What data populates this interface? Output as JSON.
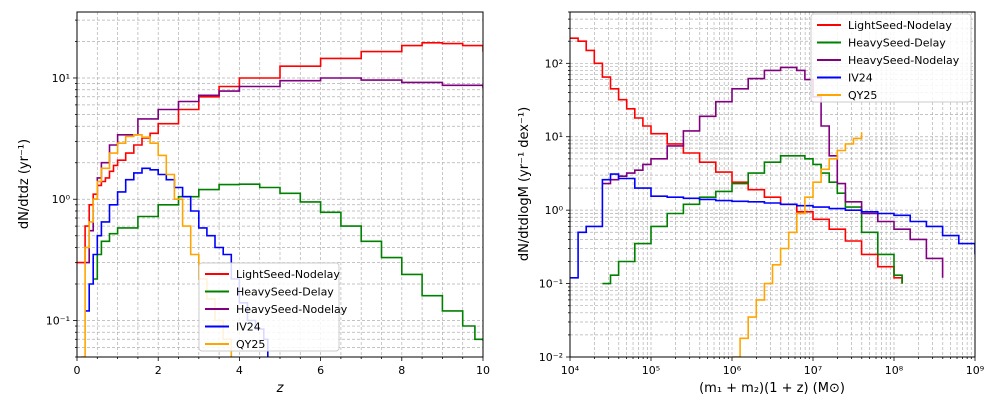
{
  "chart_data": [
    {
      "type": "line",
      "step": true,
      "title": "",
      "xlabel": "z",
      "ylabel": "dN/dtdz (yr⁻¹)",
      "xscale": "linear",
      "yscale": "log",
      "xlim": [
        0,
        10
      ],
      "ylim": [
        0.05,
        35
      ],
      "xticks": [
        0,
        2,
        4,
        6,
        8,
        10
      ],
      "xtick_labels": [
        "0",
        "2",
        "4",
        "6",
        "8",
        "10"
      ],
      "yticks": [
        0.1,
        1,
        10
      ],
      "ytick_labels": [
        "10⁻¹",
        "10⁰",
        "10¹"
      ],
      "grid": true,
      "legend_position": "lower-center",
      "series": [
        {
          "name": "LightSeed-Nodelay",
          "color": "#ff0000",
          "x": [
            0,
            0.2,
            0.3,
            0.4,
            0.5,
            0.6,
            0.7,
            0.8,
            0.9,
            1.0,
            1.2,
            1.4,
            1.6,
            1.8,
            2.0,
            2.5,
            3.0,
            3.5,
            4.0,
            5.0,
            6.0,
            7.0,
            8.0,
            8.5,
            9.0,
            9.5,
            10.0
          ],
          "y": [
            0.3,
            0.6,
            0.9,
            1.1,
            1.3,
            1.4,
            1.5,
            1.7,
            1.9,
            2.1,
            2.4,
            2.8,
            3.2,
            3.5,
            4.2,
            5.5,
            7.0,
            8.5,
            10.0,
            12.5,
            14.5,
            16.5,
            18.5,
            19.5,
            19.2,
            18.5,
            16.5
          ]
        },
        {
          "name": "HeavySeed-Delay",
          "color": "#008000",
          "x": [
            0.4,
            0.5,
            0.6,
            0.8,
            1.0,
            1.5,
            2.0,
            2.5,
            3.0,
            3.5,
            4.0,
            4.5,
            5.0,
            5.5,
            6.0,
            6.5,
            7.0,
            7.5,
            8.0,
            8.5,
            9.0,
            9.5,
            9.8,
            10.0
          ],
          "y": [
            0.22,
            0.35,
            0.45,
            0.52,
            0.58,
            0.72,
            0.9,
            1.05,
            1.2,
            1.32,
            1.33,
            1.25,
            1.12,
            0.95,
            0.78,
            0.6,
            0.45,
            0.33,
            0.24,
            0.16,
            0.12,
            0.09,
            0.07,
            0.068
          ]
        },
        {
          "name": "HeavySeed-Nodelay",
          "color": "#800080",
          "x": [
            0.2,
            0.3,
            0.4,
            0.5,
            0.6,
            0.8,
            1.0,
            1.5,
            2.0,
            2.5,
            3.0,
            3.5,
            4.0,
            5.0,
            6.0,
            7.0,
            8.0,
            9.0,
            10.0
          ],
          "y": [
            0.3,
            0.55,
            1.0,
            1.5,
            2.0,
            2.8,
            3.4,
            4.6,
            5.5,
            6.4,
            7.2,
            7.8,
            8.5,
            9.5,
            10.0,
            9.6,
            9.2,
            8.7,
            8.2
          ]
        },
        {
          "name": "IV24",
          "color": "#0000ff",
          "x": [
            0.2,
            0.3,
            0.4,
            0.5,
            0.6,
            0.8,
            1.0,
            1.2,
            1.4,
            1.6,
            1.8,
            2.0,
            2.2,
            2.4,
            2.6,
            2.8,
            3.0,
            3.2,
            3.4,
            3.6,
            3.8,
            4.0,
            4.2,
            4.4,
            4.6,
            4.7
          ],
          "y": [
            0.12,
            0.2,
            0.35,
            0.5,
            0.65,
            0.9,
            1.15,
            1.45,
            1.65,
            1.8,
            1.75,
            1.6,
            1.45,
            1.25,
            1.05,
            0.8,
            0.58,
            0.5,
            0.4,
            0.35,
            0.22,
            0.14,
            0.1,
            0.085,
            0.07,
            0.05
          ]
        },
        {
          "name": "QY25",
          "color": "#ffa500",
          "x": [
            0.1,
            0.2,
            0.3,
            0.4,
            0.5,
            0.6,
            0.8,
            1.0,
            1.2,
            1.4,
            1.6,
            1.8,
            2.0,
            2.2,
            2.4,
            2.6,
            2.8,
            3.0,
            3.2,
            3.4,
            3.6,
            3.8
          ],
          "y": [
            0.05,
            0.4,
            0.65,
            1.0,
            1.4,
            1.8,
            2.4,
            2.9,
            3.3,
            3.4,
            3.25,
            2.9,
            2.3,
            1.6,
            1.0,
            0.6,
            0.35,
            0.22,
            0.15,
            0.1,
            0.07,
            0.05
          ]
        }
      ]
    },
    {
      "type": "line",
      "step": true,
      "title": "",
      "xlabel": "(m₁ + m₂)(1 + z) (M⊙)",
      "ylabel": "dN/dtdlogM (yr⁻¹ dex⁻¹)",
      "xscale": "log",
      "yscale": "log",
      "xlim": [
        10000,
        1000000000
      ],
      "ylim": [
        0.01,
        500
      ],
      "xticks": [
        10000,
        100000,
        1000000,
        10000000,
        100000000,
        1000000000
      ],
      "xtick_labels": [
        "10⁴",
        "10⁵",
        "10⁶",
        "10⁷",
        "10⁸",
        "10⁹"
      ],
      "yticks": [
        0.01,
        0.1,
        1,
        10,
        100
      ],
      "ytick_labels": [
        "10⁻²",
        "10⁻¹",
        "10⁰",
        "10¹",
        "10²"
      ],
      "grid": true,
      "legend_position": "top-right",
      "series": [
        {
          "name": "LightSeed-Nodelay",
          "color": "#ff0000",
          "logx": [
            4.0,
            4.1,
            4.2,
            4.3,
            4.4,
            4.5,
            4.6,
            4.7,
            4.8,
            4.9,
            5.0,
            5.2,
            5.4,
            5.6,
            5.8,
            6.0,
            6.2,
            6.4,
            6.6,
            6.8,
            7.0,
            7.2,
            7.4,
            7.6,
            7.8,
            8.0,
            8.1
          ],
          "y": [
            220,
            200,
            150,
            100,
            65,
            45,
            32,
            24,
            18,
            14,
            11,
            8,
            6,
            4.5,
            3.3,
            2.4,
            1.9,
            1.5,
            1.2,
            0.95,
            0.75,
            0.55,
            0.38,
            0.25,
            0.17,
            0.12,
            0.1
          ]
        },
        {
          "name": "HeavySeed-Delay",
          "color": "#008000",
          "logx": [
            4.4,
            4.5,
            4.6,
            4.8,
            5.0,
            5.2,
            5.4,
            5.6,
            5.8,
            6.0,
            6.2,
            6.4,
            6.6,
            6.8,
            6.9,
            7.0,
            7.1,
            7.2,
            7.3,
            7.4,
            7.6,
            7.8,
            8.0,
            8.1
          ],
          "y": [
            0.1,
            0.13,
            0.2,
            0.35,
            0.6,
            0.9,
            1.2,
            1.5,
            1.8,
            2.3,
            3.2,
            4.5,
            5.5,
            5.5,
            5.0,
            4.2,
            3.2,
            2.4,
            1.7,
            1.1,
            0.5,
            0.25,
            0.13,
            0.1
          ]
        },
        {
          "name": "HeavySeed-Nodelay",
          "color": "#800080",
          "logx": [
            4.4,
            4.5,
            4.6,
            4.7,
            4.8,
            4.9,
            5.0,
            5.2,
            5.4,
            5.6,
            5.8,
            6.0,
            6.2,
            6.4,
            6.6,
            6.8,
            6.9,
            7.0,
            7.1,
            7.2,
            7.3,
            7.4,
            7.6,
            7.8,
            8.0,
            8.2,
            8.4,
            8.6
          ],
          "y": [
            2.3,
            2.6,
            2.9,
            3.2,
            3.5,
            4.2,
            5.0,
            7.5,
            12,
            19,
            30,
            45,
            62,
            80,
            88,
            80,
            60,
            35,
            14,
            5.5,
            2.3,
            1.3,
            0.9,
            0.7,
            0.55,
            0.4,
            0.22,
            0.12
          ]
        },
        {
          "name": "IV24",
          "color": "#0000ff",
          "logx": [
            4.0,
            4.1,
            4.2,
            4.4,
            4.5,
            4.6,
            4.8,
            5.0,
            5.2,
            5.4,
            5.6,
            5.8,
            6.0,
            6.2,
            6.4,
            6.6,
            6.8,
            7.0,
            7.2,
            7.4,
            7.6,
            7.8,
            8.0,
            8.2,
            8.4,
            8.6,
            8.8,
            9.0
          ],
          "y": [
            0.12,
            0.5,
            0.6,
            2.6,
            3.1,
            2.7,
            2.0,
            1.55,
            1.5,
            1.45,
            1.4,
            1.35,
            1.32,
            1.3,
            1.25,
            1.2,
            1.15,
            1.1,
            1.05,
            1.0,
            0.95,
            0.9,
            0.85,
            0.7,
            0.6,
            0.45,
            0.35,
            0.25
          ]
        },
        {
          "name": "QY25",
          "color": "#ffa500",
          "logx": [
            6.0,
            6.1,
            6.2,
            6.3,
            6.4,
            6.5,
            6.6,
            6.7,
            6.8,
            6.9,
            7.0,
            7.1,
            7.2,
            7.3,
            7.4,
            7.5,
            7.6
          ],
          "y": [
            0.01,
            0.018,
            0.035,
            0.06,
            0.1,
            0.18,
            0.3,
            0.5,
            0.9,
            1.5,
            2.4,
            3.6,
            5.0,
            6.5,
            8.0,
            9.5,
            11.5
          ]
        }
      ]
    }
  ]
}
